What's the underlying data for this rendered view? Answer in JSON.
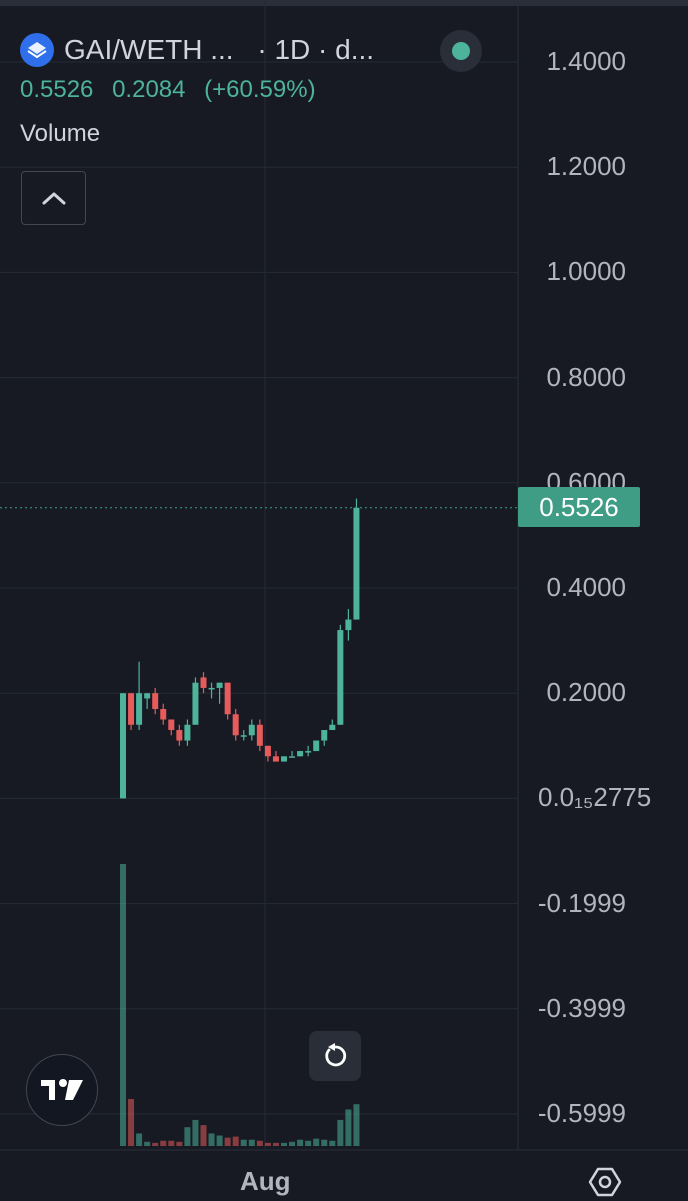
{
  "header": {
    "symbol": "GAI/WETH ...",
    "interval": "· 1D · d...",
    "last": "0.5526",
    "change": "0.2084",
    "change_pct": "(+60.59%)",
    "volume_label": "Volume"
  },
  "y_axis_labels": [
    "1.4000",
    "1.2000",
    "1.0000",
    "0.8000",
    "0.6000",
    "0.4000",
    "0.2000",
    "0.0₁₅2775",
    "-0.1999",
    "-0.3999",
    "-0.5999"
  ],
  "last_price_label": "0.5526",
  "x_axis_label": "Aug",
  "colors": {
    "up": "#4db39a",
    "down": "#e65b5b",
    "accent": "#3f9c85",
    "background": "#171a23"
  },
  "icons": {
    "logo": "gai-token-icon",
    "collapse": "chevron-up-icon",
    "brand": "tradingview-logo-icon",
    "reset": "reset-chart-icon",
    "settings": "settings-hexagon-icon",
    "status": "market-status-dot-icon"
  },
  "chart_data": {
    "type": "candlestick",
    "ylim": [
      -0.6,
      1.45
    ],
    "last_price": 0.5526,
    "candles": [
      {
        "o": 0.0,
        "h": 0.2,
        "l": 0.0,
        "c": 0.2
      },
      {
        "o": 0.2,
        "h": 0.2,
        "l": 0.13,
        "c": 0.14
      },
      {
        "o": 0.14,
        "h": 0.26,
        "l": 0.13,
        "c": 0.2
      },
      {
        "o": 0.19,
        "h": 0.2,
        "l": 0.17,
        "c": 0.2
      },
      {
        "o": 0.2,
        "h": 0.21,
        "l": 0.16,
        "c": 0.17
      },
      {
        "o": 0.17,
        "h": 0.18,
        "l": 0.14,
        "c": 0.15
      },
      {
        "o": 0.15,
        "h": 0.15,
        "l": 0.12,
        "c": 0.13
      },
      {
        "o": 0.13,
        "h": 0.14,
        "l": 0.1,
        "c": 0.11
      },
      {
        "o": 0.11,
        "h": 0.15,
        "l": 0.1,
        "c": 0.14
      },
      {
        "o": 0.14,
        "h": 0.23,
        "l": 0.14,
        "c": 0.22
      },
      {
        "o": 0.23,
        "h": 0.24,
        "l": 0.2,
        "c": 0.21
      },
      {
        "o": 0.21,
        "h": 0.22,
        "l": 0.19,
        "c": 0.21
      },
      {
        "o": 0.21,
        "h": 0.22,
        "l": 0.18,
        "c": 0.22
      },
      {
        "o": 0.22,
        "h": 0.22,
        "l": 0.15,
        "c": 0.16
      },
      {
        "o": 0.16,
        "h": 0.17,
        "l": 0.11,
        "c": 0.12
      },
      {
        "o": 0.12,
        "h": 0.13,
        "l": 0.11,
        "c": 0.12
      },
      {
        "o": 0.12,
        "h": 0.15,
        "l": 0.11,
        "c": 0.14
      },
      {
        "o": 0.14,
        "h": 0.15,
        "l": 0.09,
        "c": 0.1
      },
      {
        "o": 0.1,
        "h": 0.1,
        "l": 0.07,
        "c": 0.08
      },
      {
        "o": 0.08,
        "h": 0.09,
        "l": 0.07,
        "c": 0.07
      },
      {
        "o": 0.07,
        "h": 0.08,
        "l": 0.07,
        "c": 0.08
      },
      {
        "o": 0.08,
        "h": 0.09,
        "l": 0.08,
        "c": 0.08
      },
      {
        "o": 0.08,
        "h": 0.09,
        "l": 0.08,
        "c": 0.09
      },
      {
        "o": 0.09,
        "h": 0.1,
        "l": 0.08,
        "c": 0.09
      },
      {
        "o": 0.09,
        "h": 0.11,
        "l": 0.09,
        "c": 0.11
      },
      {
        "o": 0.11,
        "h": 0.13,
        "l": 0.1,
        "c": 0.13
      },
      {
        "o": 0.13,
        "h": 0.15,
        "l": 0.13,
        "c": 0.14
      },
      {
        "o": 0.14,
        "h": 0.33,
        "l": 0.14,
        "c": 0.32
      },
      {
        "o": 0.32,
        "h": 0.36,
        "l": 0.3,
        "c": 0.34
      },
      {
        "o": 0.34,
        "h": 0.57,
        "l": 0.34,
        "c": 0.5526
      }
    ],
    "volume": [
      2.7,
      0.45,
      0.12,
      0.04,
      0.03,
      0.05,
      0.05,
      0.04,
      0.18,
      0.25,
      0.2,
      0.12,
      0.1,
      0.08,
      0.09,
      0.06,
      0.06,
      0.05,
      0.03,
      0.03,
      0.03,
      0.04,
      0.06,
      0.05,
      0.07,
      0.06,
      0.05,
      0.25,
      0.35,
      0.4
    ]
  }
}
